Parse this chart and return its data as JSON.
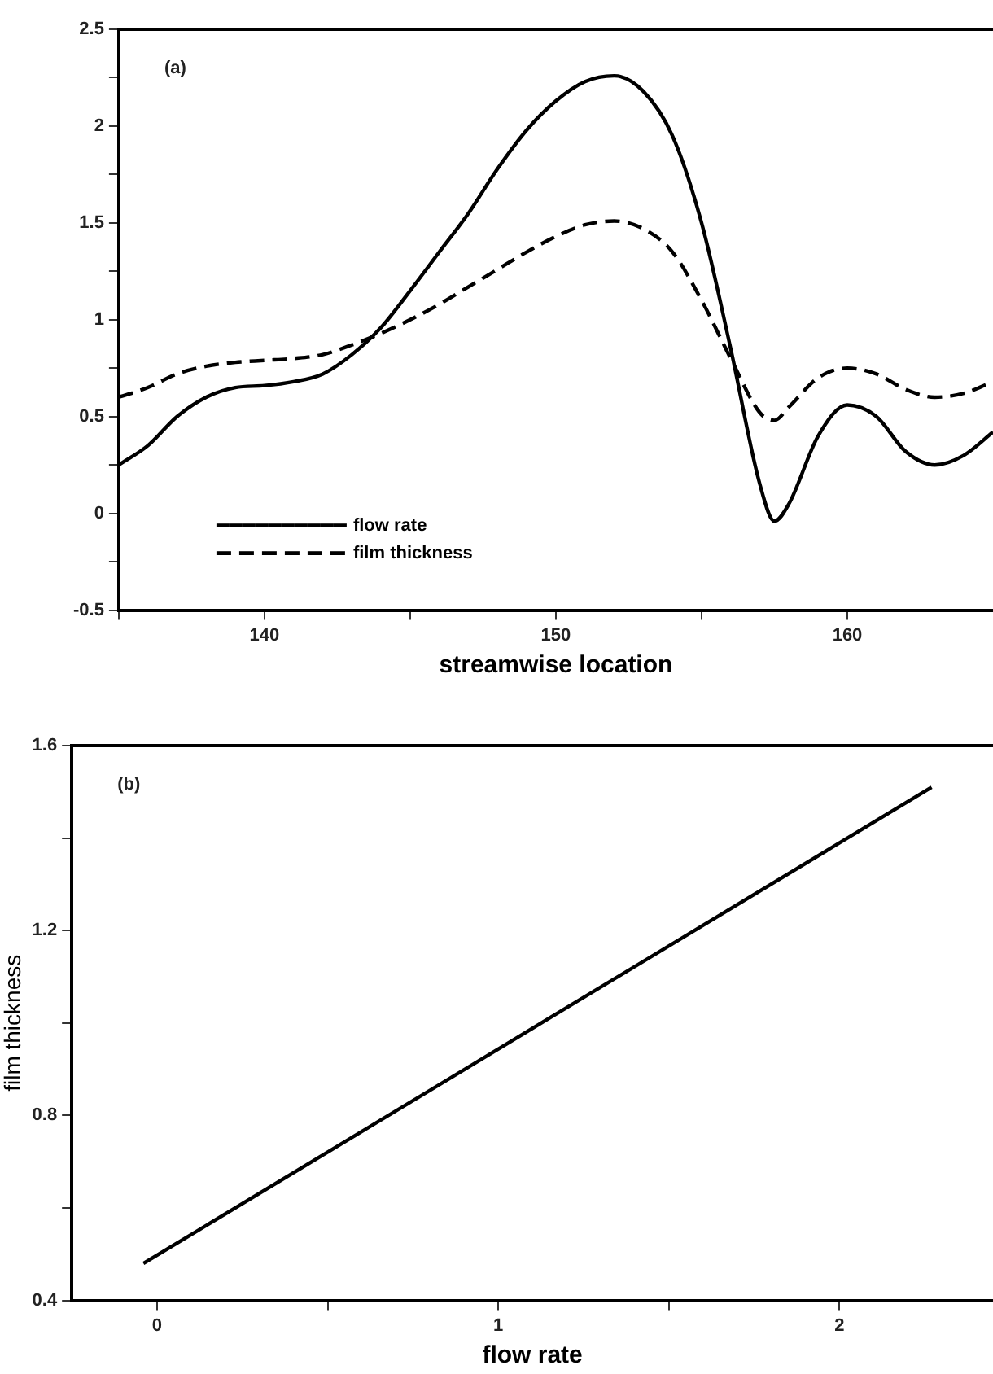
{
  "chart_data": [
    {
      "type": "line",
      "xlabel": "streamwise location",
      "annotations": [
        "(a)"
      ],
      "legend": "bottom left",
      "marker": "none",
      "xlim": [
        135,
        165
      ],
      "xticks": [
        {
          "value": 135,
          "label": null
        },
        140,
        {
          "value": 145,
          "label": null
        },
        150,
        {
          "value": 155,
          "label": null
        },
        160
      ],
      "ylim": [
        -0.5,
        2.5
      ],
      "yticks": [
        -0.5,
        {
          "value": -0.25,
          "label": null
        },
        0,
        {
          "value": 0.25,
          "label": null
        },
        0.5,
        {
          "value": 0.75,
          "label": null
        },
        1,
        {
          "value": 1.25,
          "label": null
        },
        1.5,
        {
          "value": 1.75,
          "label": null
        },
        2,
        {
          "value": 2.25,
          "label": null
        },
        2.5
      ],
      "series": [
        {
          "name": "flow rate",
          "color": "#000000",
          "line_style": "solid",
          "x": [
            135,
            136,
            137,
            138,
            139,
            140,
            141,
            142,
            143,
            144,
            145,
            146,
            147,
            148,
            149,
            150,
            151,
            152,
            153,
            154,
            155,
            156,
            157,
            157.5,
            158,
            159,
            160,
            161,
            162,
            163,
            164,
            165
          ],
          "values": [
            0.25,
            0.35,
            0.5,
            0.6,
            0.65,
            0.66,
            0.68,
            0.72,
            0.82,
            0.96,
            1.15,
            1.35,
            1.55,
            1.78,
            1.98,
            2.13,
            2.23,
            2.26,
            2.18,
            1.95,
            1.5,
            0.85,
            0.15,
            -0.04,
            0.05,
            0.4,
            0.56,
            0.5,
            0.32,
            0.25,
            0.3,
            0.42
          ]
        },
        {
          "name": "film thickness",
          "color": "#000000",
          "line_style": "dashed",
          "x": [
            135,
            136,
            137,
            138,
            139,
            140,
            141,
            142,
            143,
            144,
            145,
            146,
            147,
            148,
            149,
            150,
            151,
            152,
            153,
            154,
            155,
            156,
            157,
            157.5,
            158,
            159,
            160,
            161,
            162,
            163,
            164,
            165
          ],
          "values": [
            0.6,
            0.65,
            0.72,
            0.76,
            0.78,
            0.79,
            0.8,
            0.82,
            0.87,
            0.93,
            1.0,
            1.08,
            1.17,
            1.26,
            1.35,
            1.43,
            1.49,
            1.51,
            1.47,
            1.35,
            1.1,
            0.8,
            0.52,
            0.48,
            0.55,
            0.7,
            0.75,
            0.72,
            0.64,
            0.6,
            0.62,
            0.68
          ]
        }
      ]
    },
    {
      "type": "line",
      "xlabel": "flow rate",
      "ylabel": "film thickness",
      "annotations": [
        "(b)"
      ],
      "marker": "none",
      "xlim": [
        -0.25,
        2.45
      ],
      "xticks": [
        0,
        {
          "value": 0.5,
          "label": null
        },
        1,
        {
          "value": 1.5,
          "label": null
        },
        2
      ],
      "ylim": [
        0.4,
        1.6
      ],
      "yticks": [
        0.4,
        {
          "value": 0.6,
          "label": null
        },
        0.8,
        {
          "value": 1.0,
          "label": null
        },
        1.2,
        {
          "value": 1.4,
          "label": null
        },
        1.6
      ],
      "series": [
        {
          "color": "#000000",
          "line_style": "solid",
          "x": [
            -0.04,
            2.27
          ],
          "values": [
            0.48,
            1.51
          ]
        }
      ]
    }
  ]
}
